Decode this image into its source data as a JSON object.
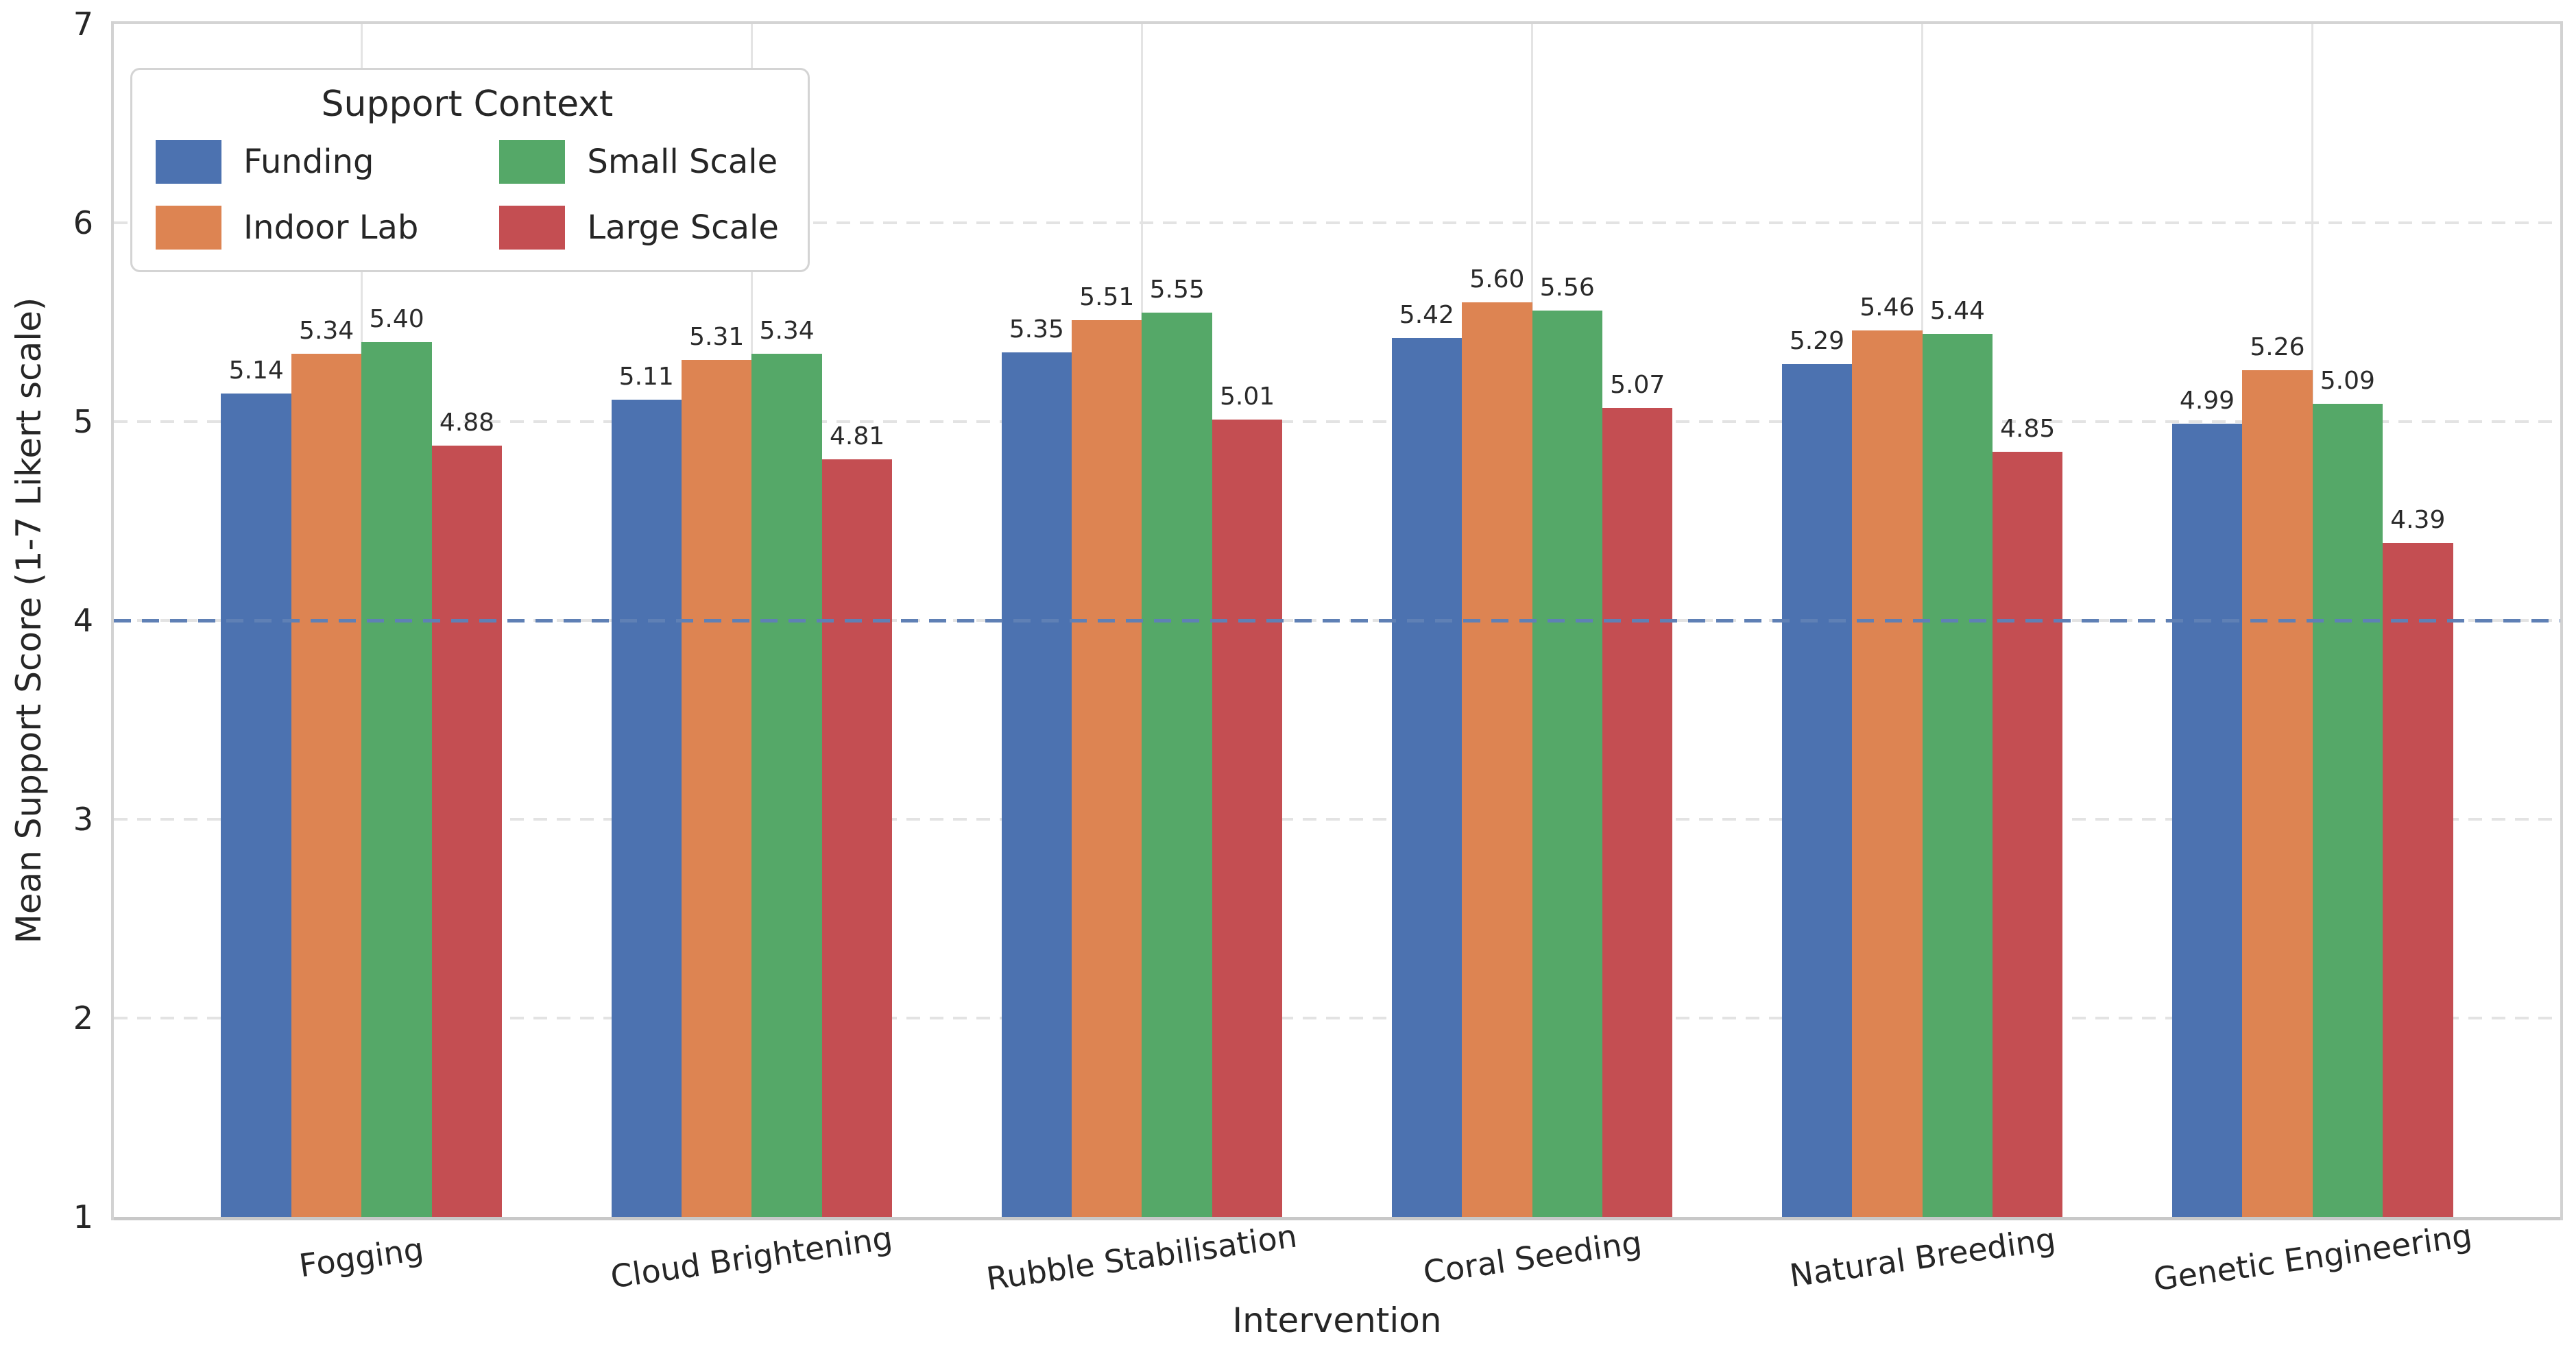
{
  "chart_data": {
    "type": "bar",
    "xlabel": "Intervention",
    "ylabel": "Mean Support Score (1-7 Likert scale)",
    "categories": [
      "Fogging",
      "Cloud Brightening",
      "Rubble Stabilisation",
      "Coral Seeding",
      "Natural Breeding",
      "Genetic Engineering"
    ],
    "series": [
      {
        "name": "Funding",
        "color": "#4C72B0",
        "values": [
          5.14,
          5.11,
          5.35,
          5.42,
          5.29,
          4.99
        ],
        "labels": [
          "5.14",
          "5.11",
          "5.35",
          "5.42",
          "5.29",
          "4.99"
        ]
      },
      {
        "name": "Indoor Lab",
        "color": "#DD8452",
        "values": [
          5.34,
          5.31,
          5.51,
          5.6,
          5.46,
          5.26
        ],
        "labels": [
          "5.34",
          "5.31",
          "5.51",
          "5.60",
          "5.46",
          "5.26"
        ]
      },
      {
        "name": "Small Scale",
        "color": "#55A868",
        "values": [
          5.4,
          5.34,
          5.55,
          5.56,
          5.44,
          5.09
        ],
        "labels": [
          "5.40",
          "5.34",
          "5.55",
          "5.56",
          "5.44",
          "5.09"
        ]
      },
      {
        "name": "Large Scale",
        "color": "#C44E52",
        "values": [
          4.88,
          4.81,
          5.01,
          5.07,
          4.85,
          4.39
        ],
        "labels": [
          "4.88",
          "4.81",
          "5.01",
          "5.07",
          "4.85",
          "4.39"
        ]
      }
    ],
    "ylim": [
      1,
      7
    ],
    "yticks": [
      "1",
      "2",
      "3",
      "4",
      "5",
      "6",
      "7"
    ],
    "legend_title": "Support Context",
    "legend_position": "upper-left",
    "reference_line": {
      "y": 4,
      "color": "#4C72B0",
      "style": "dashed"
    },
    "grid": {
      "horizontal": "dashed",
      "vertical": "solid",
      "gridline_color": "#e3e3e3"
    },
    "bar_label_decimals": 2
  }
}
